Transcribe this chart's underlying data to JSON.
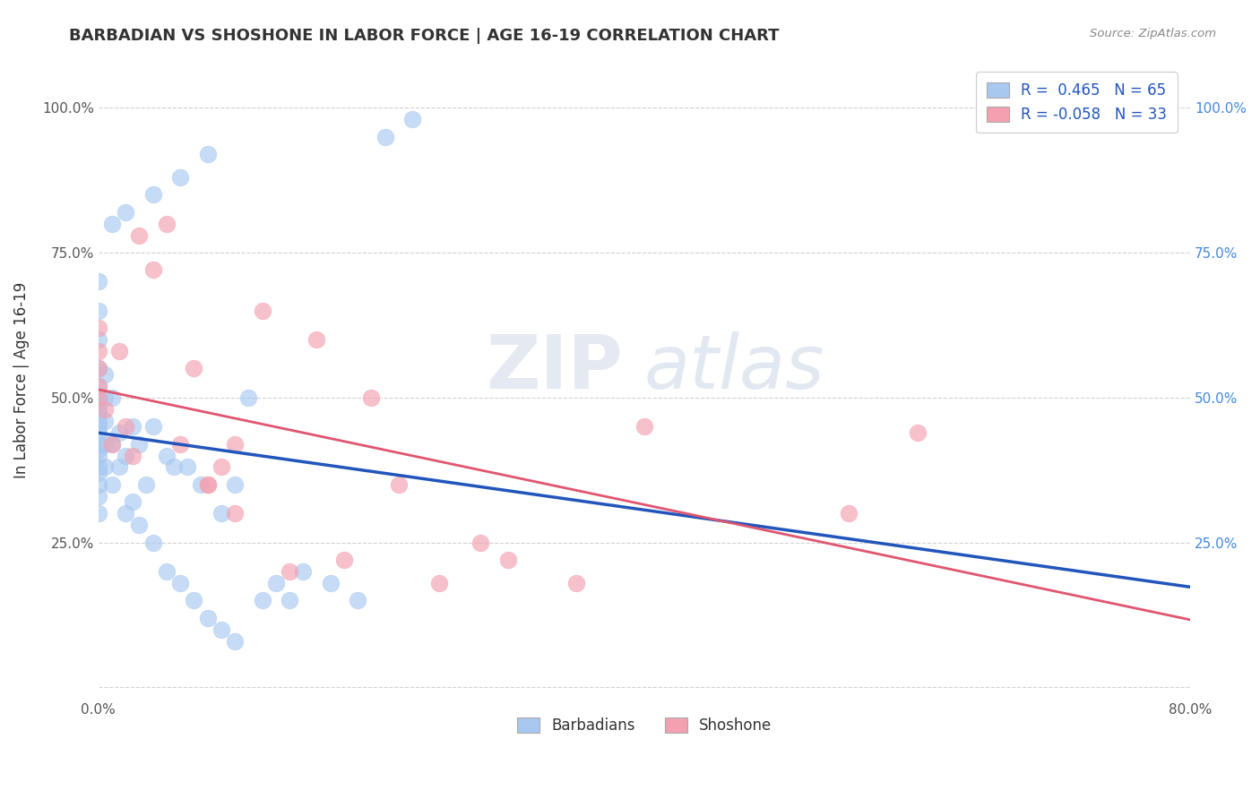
{
  "title": "BARBADIAN VS SHOSHONE IN LABOR FORCE | AGE 16-19 CORRELATION CHART",
  "source_text": "Source: ZipAtlas.com",
  "ylabel": "In Labor Force | Age 16-19",
  "xlim": [
    0.0,
    0.8
  ],
  "ylim": [
    -0.02,
    1.08
  ],
  "barbadian_color": "#a8c8f0",
  "shoshone_color": "#f4a0b0",
  "barbadian_line_color": "#2255bb",
  "shoshone_line_color": "#e05570",
  "legend_r_b": " 0.465",
  "legend_n_b": "65",
  "legend_r_s": "-0.058",
  "legend_n_s": "33",
  "watermark_zip": "ZIP",
  "watermark_atlas": "atlas",
  "grid_color": "#cccccc",
  "background_color": "#ffffff",
  "barbadian_x": [
    0.0,
    0.0,
    0.0,
    0.0,
    0.0,
    0.0,
    0.0,
    0.0,
    0.0,
    0.0,
    0.0,
    0.0,
    0.0,
    0.0,
    0.0,
    0.0,
    0.0,
    0.0,
    0.0,
    0.0,
    0.005,
    0.005,
    0.005,
    0.005,
    0.005,
    0.01,
    0.01,
    0.01,
    0.015,
    0.015,
    0.02,
    0.02,
    0.025,
    0.025,
    0.03,
    0.03,
    0.035,
    0.04,
    0.04,
    0.05,
    0.05,
    0.055,
    0.06,
    0.065,
    0.07,
    0.075,
    0.08,
    0.09,
    0.09,
    0.1,
    0.1,
    0.11,
    0.12,
    0.13,
    0.14,
    0.15,
    0.17,
    0.19,
    0.21,
    0.23,
    0.08,
    0.06,
    0.04,
    0.02,
    0.01
  ],
  "barbadian_y": [
    0.3,
    0.33,
    0.35,
    0.37,
    0.38,
    0.4,
    0.41,
    0.42,
    0.44,
    0.45,
    0.46,
    0.47,
    0.48,
    0.49,
    0.5,
    0.52,
    0.55,
    0.6,
    0.65,
    0.7,
    0.38,
    0.42,
    0.46,
    0.5,
    0.54,
    0.35,
    0.42,
    0.5,
    0.38,
    0.44,
    0.3,
    0.4,
    0.32,
    0.45,
    0.28,
    0.42,
    0.35,
    0.25,
    0.45,
    0.2,
    0.4,
    0.38,
    0.18,
    0.38,
    0.15,
    0.35,
    0.12,
    0.1,
    0.3,
    0.08,
    0.35,
    0.5,
    0.15,
    0.18,
    0.15,
    0.2,
    0.18,
    0.15,
    0.95,
    0.98,
    0.92,
    0.88,
    0.85,
    0.82,
    0.8
  ],
  "shoshone_x": [
    0.0,
    0.0,
    0.0,
    0.0,
    0.0,
    0.005,
    0.01,
    0.015,
    0.02,
    0.025,
    0.03,
    0.04,
    0.05,
    0.06,
    0.07,
    0.08,
    0.09,
    0.1,
    0.12,
    0.14,
    0.16,
    0.18,
    0.2,
    0.22,
    0.25,
    0.28,
    0.3,
    0.35,
    0.4,
    0.08,
    0.1,
    0.55,
    0.6
  ],
  "shoshone_y": [
    0.5,
    0.52,
    0.55,
    0.58,
    0.62,
    0.48,
    0.42,
    0.58,
    0.45,
    0.4,
    0.78,
    0.72,
    0.8,
    0.42,
    0.55,
    0.35,
    0.38,
    0.3,
    0.65,
    0.2,
    0.6,
    0.22,
    0.5,
    0.35,
    0.18,
    0.25,
    0.22,
    0.18,
    0.45,
    0.35,
    0.42,
    0.3,
    0.44
  ]
}
